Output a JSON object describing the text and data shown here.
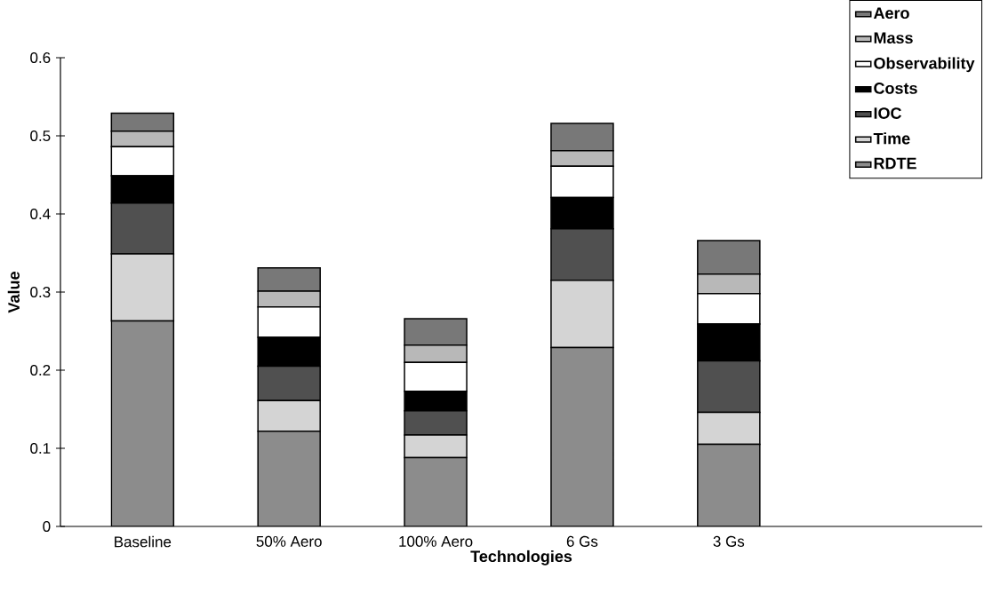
{
  "chart_data": {
    "type": "bar",
    "stacked": true,
    "xlabel": "Technologies",
    "ylabel": "Value",
    "categories": [
      "Baseline",
      "50% Aero",
      "100% Aero",
      "6 Gs",
      "3 Gs"
    ],
    "ylim": [
      0,
      0.6
    ],
    "yticks": [
      0,
      0.1,
      0.2,
      0.3,
      0.4,
      0.5,
      0.6
    ],
    "legend": "top right",
    "grid": false,
    "series": [
      {
        "name": "RDTE",
        "color": "#8c8c8c",
        "values": [
          0.263,
          0.122,
          0.088,
          0.229,
          0.105
        ]
      },
      {
        "name": "Time",
        "color": "#d4d4d4",
        "values": [
          0.086,
          0.039,
          0.029,
          0.086,
          0.041
        ]
      },
      {
        "name": "IOC",
        "color": "#505050",
        "values": [
          0.065,
          0.044,
          0.031,
          0.066,
          0.066
        ]
      },
      {
        "name": "Costs",
        "color": "#000000",
        "values": [
          0.035,
          0.037,
          0.025,
          0.04,
          0.047
        ]
      },
      {
        "name": "Observability",
        "color": "#ffffff",
        "values": [
          0.037,
          0.039,
          0.037,
          0.04,
          0.039
        ]
      },
      {
        "name": "Mass",
        "color": "#b8b8b8",
        "values": [
          0.02,
          0.02,
          0.022,
          0.02,
          0.025
        ]
      },
      {
        "name": "Aero",
        "color": "#787878",
        "values": [
          0.023,
          0.03,
          0.034,
          0.035,
          0.043
        ]
      }
    ]
  }
}
